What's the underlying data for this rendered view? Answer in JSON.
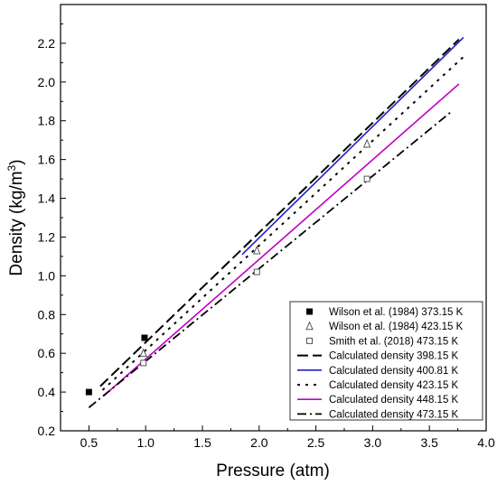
{
  "chart_data": {
    "type": "line",
    "xlabel": "Pressure (atm)",
    "ylabel": "Density (kg/m3)",
    "ylabel_main": "Density (kg/m",
    "ylabel_sup": "3",
    "ylabel_close": ")",
    "xlim": [
      0.25,
      4.0
    ],
    "ylim": [
      0.2,
      2.4
    ],
    "xticks": [
      "0.5",
      "1.0",
      "1.5",
      "2.0",
      "2.5",
      "3.0",
      "3.5",
      "4.0"
    ],
    "yticks": [
      "0.2",
      "0.4",
      "0.6",
      "0.8",
      "1.0",
      "1.2",
      "1.4",
      "1.6",
      "1.8",
      "2.0",
      "2.2"
    ],
    "grid": false,
    "legend_position": "bottom-right",
    "series": [
      {
        "name": "Wilson et al. (1984) 373.15 K",
        "kind": "scatter",
        "marker": "filled-square",
        "color": "#000000",
        "x": [
          0.5,
          0.99
        ],
        "y": [
          0.4,
          0.68
        ]
      },
      {
        "name": "Wilson et al. (1984) 423.15 K",
        "kind": "scatter",
        "marker": "open-triangle",
        "color": "#555555",
        "x": [
          0.98,
          1.98,
          2.95
        ],
        "y": [
          0.6,
          1.13,
          1.68
        ]
      },
      {
        "name": "Smith et al. (2018) 473.15 K",
        "kind": "scatter",
        "marker": "open-square",
        "color": "#555555",
        "x": [
          0.98,
          1.98,
          2.95
        ],
        "y": [
          0.55,
          1.02,
          1.5
        ]
      },
      {
        "name": "Calculated density 398.15 K",
        "kind": "line",
        "dash": "long-dash",
        "color": "#000000",
        "x": [
          0.6,
          3.76
        ],
        "y": [
          0.43,
          2.22
        ]
      },
      {
        "name": "Calculated density 400.81 K",
        "kind": "line",
        "dash": "solid",
        "color": "#2020c0",
        "x": [
          1.85,
          3.8
        ],
        "y": [
          1.11,
          2.23
        ]
      },
      {
        "name": "Calculated density 423.15 K",
        "kind": "line",
        "dash": "dot",
        "color": "#000000",
        "x": [
          0.62,
          3.8
        ],
        "y": [
          0.41,
          2.13
        ]
      },
      {
        "name": "Calculated density 448.15 K",
        "kind": "line",
        "dash": "solid",
        "color": "#c000c0",
        "x": [
          0.63,
          3.76
        ],
        "y": [
          0.38,
          1.99
        ]
      },
      {
        "name": "Calculated density 473.15 K",
        "kind": "line",
        "dash": "dash-dot",
        "color": "#000000",
        "x": [
          0.5,
          3.7
        ],
        "y": [
          0.32,
          1.85
        ]
      }
    ]
  }
}
